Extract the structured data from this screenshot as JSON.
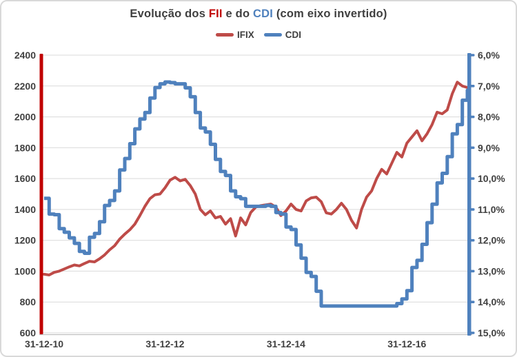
{
  "title": {
    "segments": [
      {
        "text": "Evolução dos ",
        "color": "#3F3F3F"
      },
      {
        "text": "FII",
        "color": "#C00000"
      },
      {
        "text": " e do ",
        "color": "#3F3F3F"
      },
      {
        "text": "CDI",
        "color": "#4F81BD"
      },
      {
        "text": " (com eixo invertido)",
        "color": "#3F3F3F"
      }
    ]
  },
  "legend": {
    "items": [
      {
        "label": "IFIX",
        "color": "#BE4B48"
      },
      {
        "label": "CDI",
        "color": "#4F81BD"
      }
    ]
  },
  "chart_data": {
    "type": "line",
    "title": "Evolução dos FII e do CDI (com eixo invertido)",
    "grid": true,
    "grid_color": "#D9D9D9",
    "baseline_color": "#BFBFBF",
    "text_color": "#404040",
    "legend_position": "top",
    "x_axis": {
      "unit": "monthly points from 31-12-2010 to 31-12-2017",
      "tick_labels": [
        "31-12-10",
        "31-12-12",
        "31-12-14",
        "31-12-16"
      ],
      "tick_indices": [
        0,
        24,
        48,
        72
      ]
    },
    "left_axis": {
      "min": 600,
      "max": 2400,
      "ticks": [
        2400,
        2200,
        2000,
        1800,
        1600,
        1400,
        1200,
        1000,
        800,
        600
      ],
      "color": "#C00000"
    },
    "right_axis": {
      "min": 6,
      "max": 15,
      "inverted": true,
      "tick_values": [
        6,
        7,
        8,
        9,
        10,
        11,
        12,
        13,
        14,
        15
      ],
      "tick_labels": [
        "6,0%",
        "7,0%",
        "8,0%",
        "9,0%",
        "10,0%",
        "11,0%",
        "12,0%",
        "13,0%",
        "14,0%",
        "15,0%"
      ],
      "color": "#4F81BD"
    },
    "series": [
      {
        "name": "IFIX",
        "axis": "left",
        "color": "#BE4B48",
        "line_width": 4,
        "interpolation": "linear",
        "values": [
          980,
          975,
          992,
          1000,
          1014,
          1028,
          1040,
          1034,
          1050,
          1064,
          1060,
          1080,
          1105,
          1138,
          1165,
          1208,
          1240,
          1268,
          1305,
          1360,
          1420,
          1470,
          1495,
          1500,
          1540,
          1590,
          1608,
          1585,
          1595,
          1555,
          1500,
          1400,
          1365,
          1390,
          1345,
          1355,
          1305,
          1340,
          1228,
          1345,
          1300,
          1380,
          1415,
          1425,
          1430,
          1435,
          1415,
          1360,
          1390,
          1435,
          1400,
          1390,
          1455,
          1475,
          1480,
          1450,
          1378,
          1370,
          1400,
          1440,
          1400,
          1330,
          1280,
          1400,
          1480,
          1520,
          1600,
          1660,
          1630,
          1700,
          1770,
          1740,
          1830,
          1870,
          1910,
          1845,
          1890,
          1950,
          2030,
          2020,
          2045,
          2150,
          2225,
          2200,
          2190
        ]
      },
      {
        "name": "CDI",
        "axis": "right",
        "color": "#4F81BD",
        "line_width": 5,
        "interpolation": "step",
        "values": [
          10.64,
          11.15,
          11.17,
          11.62,
          11.74,
          11.92,
          12.1,
          12.36,
          12.42,
          11.9,
          11.78,
          11.4,
          10.87,
          10.71,
          10.4,
          9.72,
          9.35,
          8.87,
          8.39,
          8.07,
          7.86,
          7.39,
          7.05,
          6.93,
          6.87,
          6.89,
          6.93,
          6.93,
          7.06,
          7.35,
          7.86,
          8.36,
          8.49,
          8.89,
          9.38,
          9.77,
          9.9,
          10.4,
          10.59,
          10.65,
          10.9,
          10.9,
          10.9,
          10.9,
          10.87,
          10.9,
          11.1,
          11.15,
          11.57,
          11.65,
          12.15,
          12.58,
          13.04,
          13.17,
          13.65,
          14.13,
          14.13,
          14.13,
          14.13,
          14.13,
          14.13,
          14.13,
          14.13,
          14.13,
          14.13,
          14.13,
          14.13,
          14.13,
          14.13,
          14.13,
          14.05,
          13.9,
          13.63,
          12.88,
          12.65,
          12.13,
          11.43,
          10.83,
          10.14,
          9.83,
          9.29,
          8.55,
          8.25,
          7.46,
          7.14
        ]
      }
    ]
  }
}
